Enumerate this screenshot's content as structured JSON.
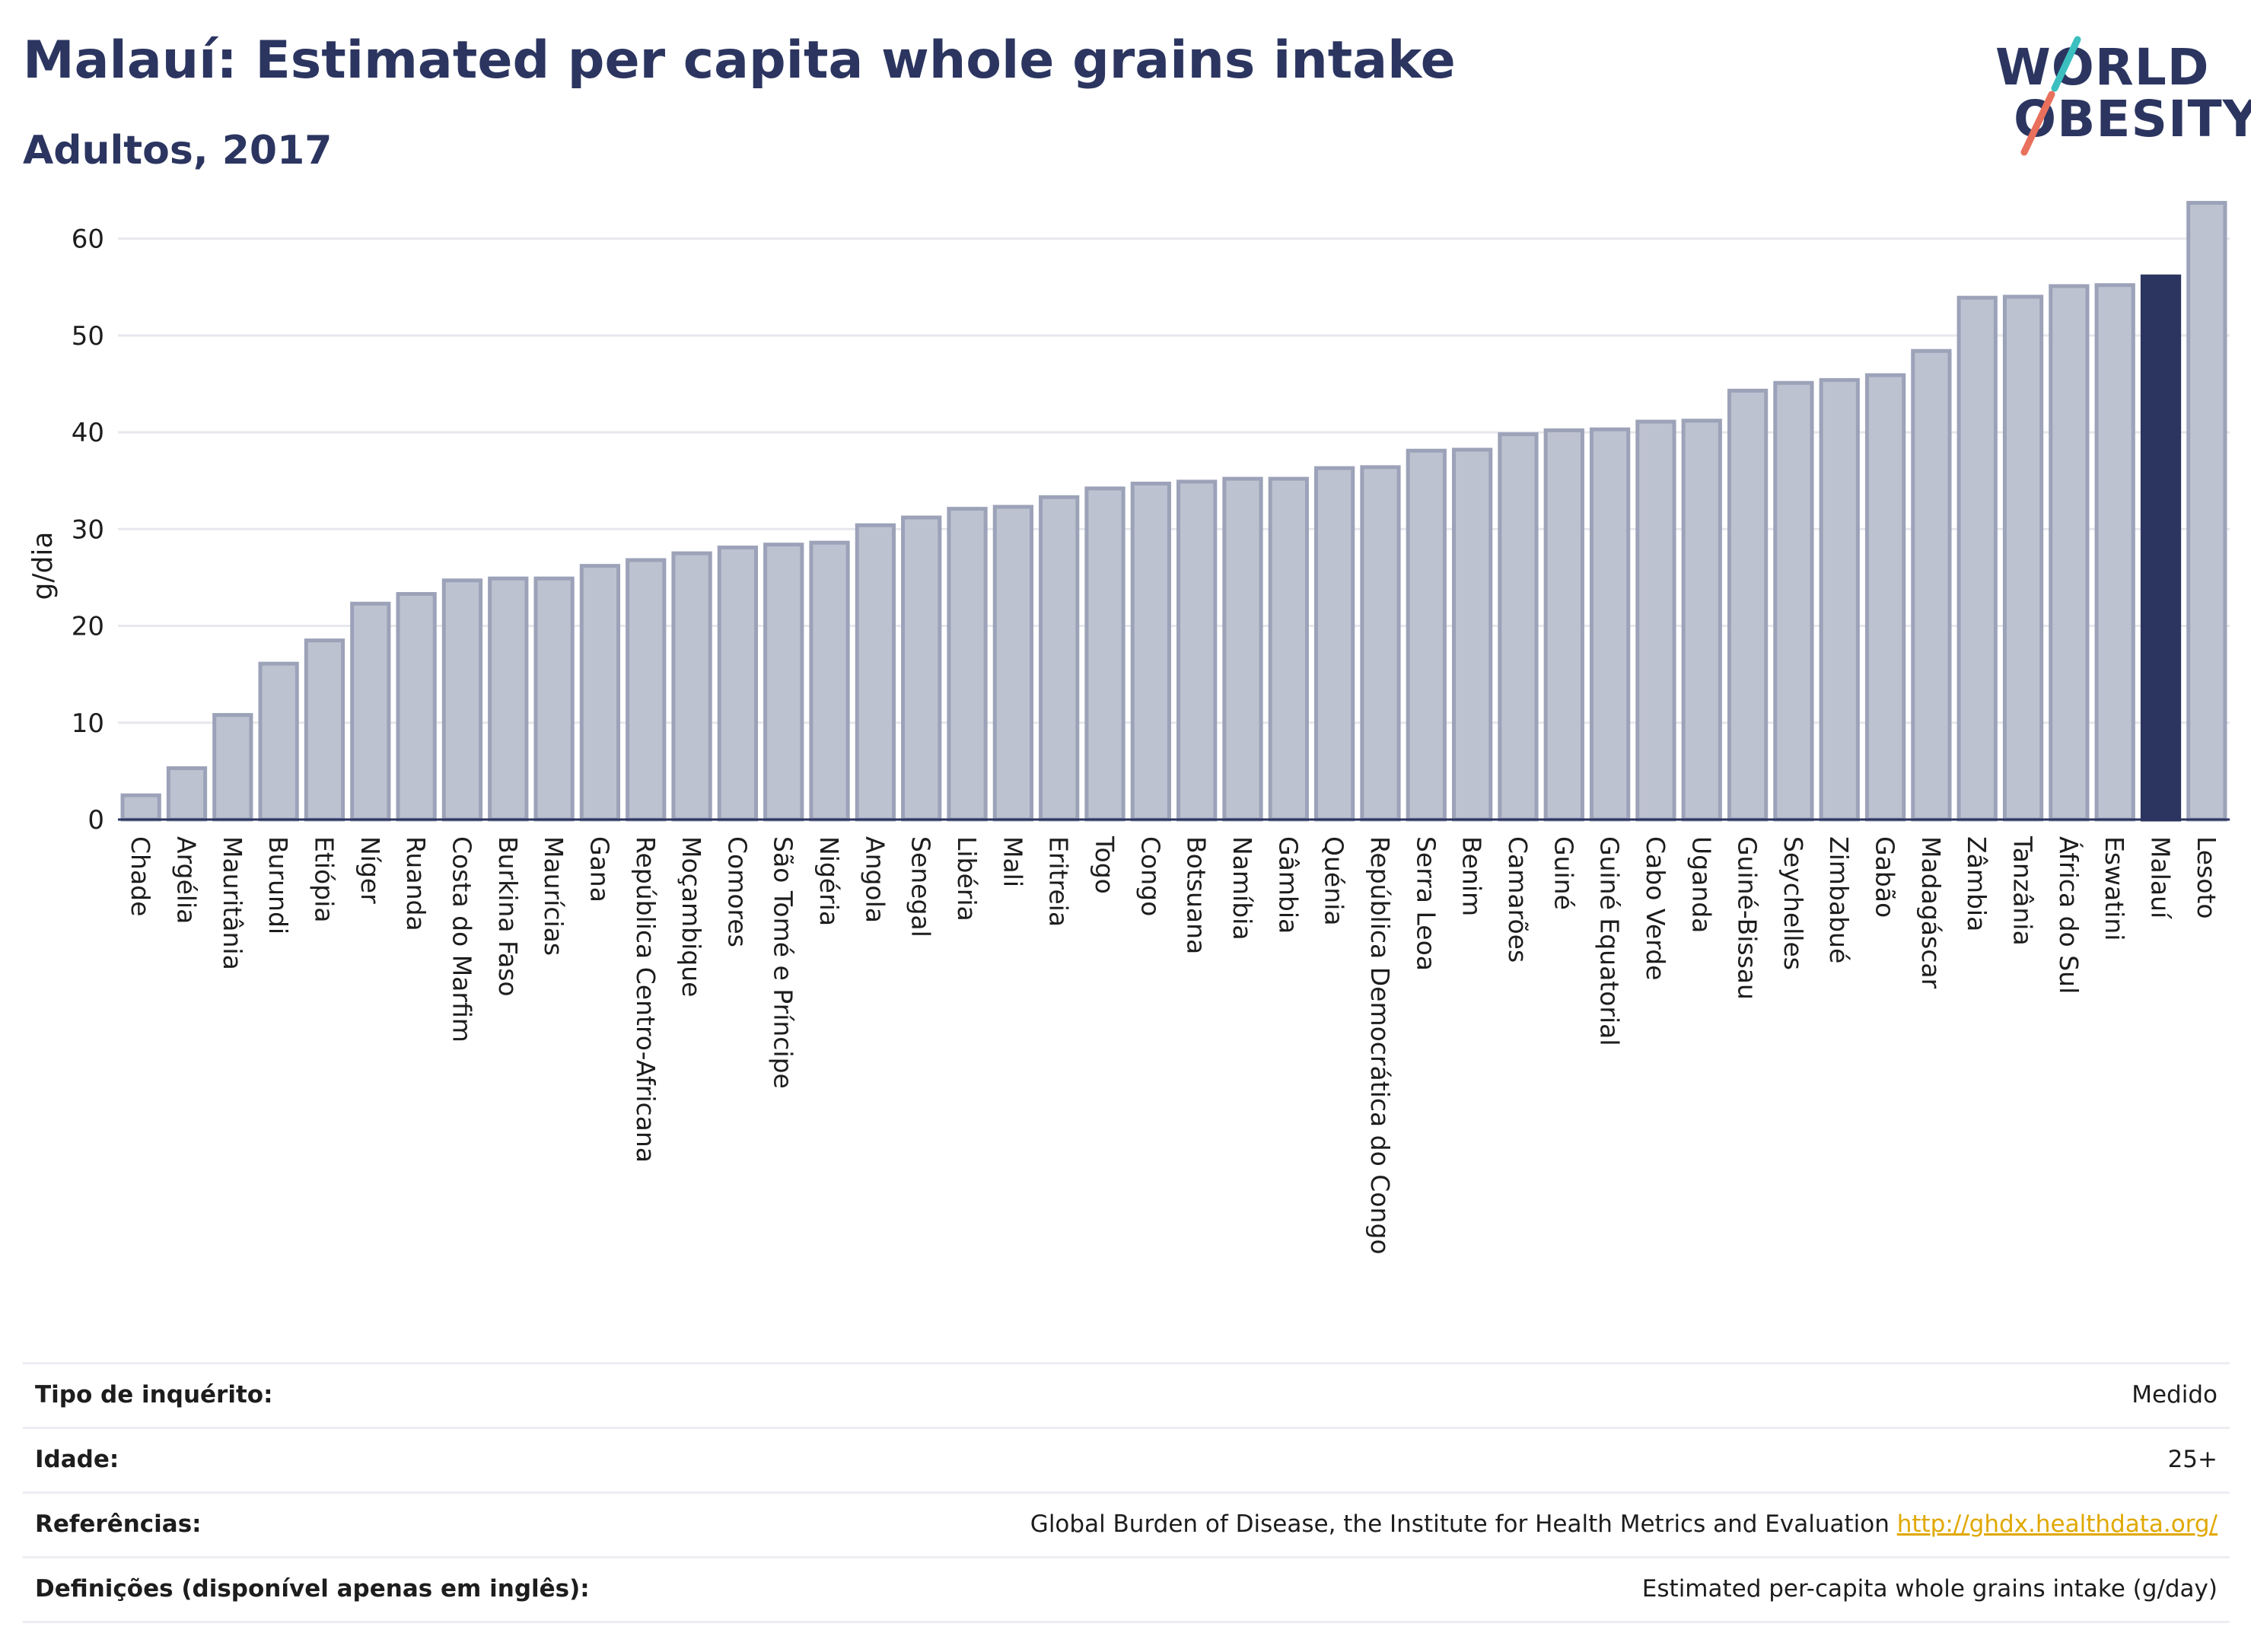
{
  "header": {
    "title": "Malauí: Estimated per capita whole grains intake",
    "subtitle": "Adultos, 2017"
  },
  "logo": {
    "line1": "WORLD",
    "line2": "OBESITY",
    "slash_colors": [
      "#3bbfbf",
      "#e8705c"
    ]
  },
  "colors": {
    "bar_default": "#bdc2d1",
    "bar_stroke": "#9ca2b8",
    "bar_highlight": "#2b3560",
    "grid": "#e6e8ee",
    "axis": "#2b3560"
  },
  "chart_data": {
    "type": "bar",
    "title": "",
    "ylabel": "g/dia",
    "ylim": [
      0,
      65
    ],
    "yticks": [
      0,
      10,
      20,
      30,
      40,
      50,
      60
    ],
    "grid": true,
    "highlight": "Malauí",
    "categories": [
      "Chade",
      "Argélia",
      "Mauritânia",
      "Burundi",
      "Etiópia",
      "Níger",
      "Ruanda",
      "Costa do Marfim",
      "Burkina Faso",
      "Maurícias",
      "Gana",
      "República Centro-Africana",
      "Moçambique",
      "Comores",
      "São Tomé e Príncipe",
      "Nigéria",
      "Angola",
      "Senegal",
      "Libéria",
      "Mali",
      "Eritreia",
      "Togo",
      "Congo",
      "Botsuana",
      "Namíbia",
      "Gâmbia",
      "Quénia",
      "República Democrática do Congo",
      "Serra Leoa",
      "Benim",
      "Camarões",
      "Guiné",
      "Guiné Equatorial",
      "Cabo Verde",
      "Uganda",
      "Guiné-Bissau",
      "Seychelles",
      "Zimbabué",
      "Gabão",
      "Madagáscar",
      "Zâmbia",
      "Tanzânia",
      "África do Sul",
      "Eswatini",
      "Malauí",
      "Lesoto"
    ],
    "values": [
      2.5,
      5.3,
      10.8,
      16.1,
      18.5,
      22.3,
      23.3,
      24.7,
      24.9,
      24.9,
      26.2,
      26.8,
      27.5,
      28.1,
      28.4,
      28.6,
      30.4,
      31.2,
      32.1,
      32.3,
      33.3,
      34.2,
      34.7,
      34.9,
      35.2,
      35.2,
      36.3,
      36.4,
      38.1,
      38.2,
      39.8,
      40.2,
      40.3,
      41.1,
      41.2,
      44.3,
      45.1,
      45.4,
      45.9,
      48.4,
      53.9,
      54.0,
      55.1,
      55.2,
      56.1,
      63.7
    ]
  },
  "info": {
    "rows": [
      {
        "label": "Tipo de inquérito:",
        "value": "Medido"
      },
      {
        "label": "Idade:",
        "value": "25+"
      },
      {
        "label": "Referências:",
        "value": "Global Burden of Disease, the Institute for Health Metrics and Evaluation",
        "link": "http://ghdx.healthdata.org/"
      },
      {
        "label": "Definições (disponível apenas em inglês):",
        "value": "Estimated per-capita whole grains intake (g/day)"
      }
    ]
  }
}
